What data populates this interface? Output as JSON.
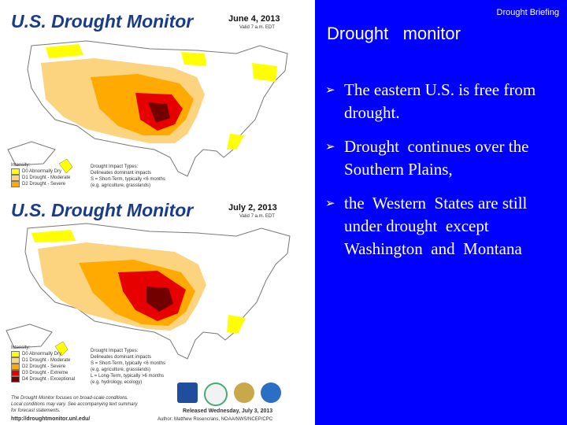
{
  "header": {
    "briefing": "Drought Briefing",
    "title": "Drought   monitor"
  },
  "bullets": [
    {
      "marker": "➢",
      "text": "The eastern U.S. is free from drought."
    },
    {
      "marker": "➢",
      "text": "Drought  continues over the Southern Plains,"
    },
    {
      "marker": "➢",
      "text": "the  Western  States are still under drought  except Washington  and  Montana"
    }
  ],
  "map1": {
    "title": "U.S. Drought Monitor",
    "date": "June 4, 2013",
    "valid": "Valid 7 a.m. EDT",
    "intensity_label": "Intensity:",
    "legend": [
      {
        "label": "D0 Abnormally Dry",
        "color": "#ffff00"
      },
      {
        "label": "D1 Drought - Moderate",
        "color": "#fcd37f"
      },
      {
        "label": "D2 Drought - Severe",
        "color": "#ffaa00"
      }
    ],
    "impact_title": "Drought Impact Types:",
    "impacts": [
      "Delineates dominant impacts",
      "S = Short-Term, typically <6 months",
      "(e.g. agriculture, grasslands)"
    ]
  },
  "map2": {
    "title": "U.S. Drought Monitor",
    "date": "July 2, 2013",
    "valid": "Valid 7 a.m. EDT",
    "intensity_label": "Intensity:",
    "legend": [
      {
        "label": "D0 Abnormally Dry",
        "color": "#ffff00"
      },
      {
        "label": "D1 Drought - Moderate",
        "color": "#fcd37f"
      },
      {
        "label": "D2 Drought - Severe",
        "color": "#ffaa00"
      },
      {
        "label": "D3 Drought - Extreme",
        "color": "#e60000"
      },
      {
        "label": "D4 Drought - Exceptional",
        "color": "#730000"
      }
    ],
    "impact_title": "Drought Impact Types:",
    "impacts": [
      "Delineates dominant impacts",
      "S = Short-Term, typically <6 months",
      "(e.g. agriculture, grasslands)",
      "L = Long-Term, typically >6 months",
      "(e.g. hydrology, ecology)"
    ],
    "footnote": [
      "The Drought Monitor focuses on broad-scale conditions.",
      "Local conditions may vary. See accompanying text summary",
      "for forecast statements."
    ],
    "url": "http://droughtmonitor.unl.edu/",
    "released": "Released Wednesday, July 3, 2013",
    "author": "Author: Matthew Rosencrans, NOAA/NWS/NCEP/CPC"
  }
}
